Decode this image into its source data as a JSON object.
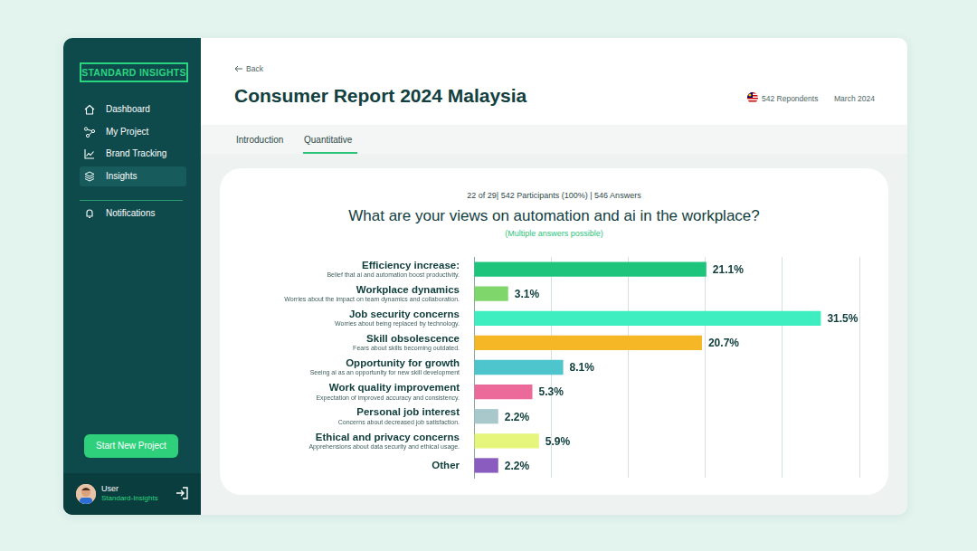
{
  "sidebar": {
    "logo": "STANDARD INSIGHTS",
    "nav": [
      "Dashboard",
      "My Project",
      "Brand Tracking",
      "Insights"
    ],
    "notifications": "Notifications",
    "button": "Start New Project",
    "user": {
      "name": "User",
      "company": "Standard-Insights"
    }
  },
  "header": {
    "back": "Back",
    "title": "Consumer Report 2024 Malaysia",
    "respondents": "542 Repondents",
    "date": "March 2024"
  },
  "tabs": [
    "Introduction",
    "Quantitative"
  ],
  "chart_data": {
    "type": "bar",
    "orientation": "horizontal",
    "annotations": [
      "22 of 29| 542 Participants (100%) | 546 Answers"
    ],
    "title": "What are your views on automation and ai in the workplace?",
    "subtitle": "(Multiple answers possible)",
    "categories": [
      "Efficiency increase:",
      "Workplace dynamics",
      "Job security concerns",
      "Skill obsolescence",
      "Opportunity for growth",
      "Work quality improvement",
      "Personal job interest",
      "Ethical and privacy concerns",
      "Other"
    ],
    "category_descriptions": [
      "Belief that ai and automation boost productivity.",
      "Worries about the impact on team dynamics and collaboration.",
      "Worries about being replaced by technology.",
      "Fears about skills becoming outdated.",
      "Seeing ai as an opportunity for new skill development",
      "Expectation of improved accuracy and consistency.",
      "Concerns about decreased job satisfaction.",
      "Apprehensions about data security and ethical usage.",
      null
    ],
    "values": [
      21.1,
      3.1,
      31.5,
      20.7,
      8.1,
      5.3,
      2.2,
      5.9,
      2.2
    ],
    "value_labels": [
      "21.1%",
      "3.1%",
      "31.5%",
      "20.7%",
      "8.1%",
      "5.3%",
      "2.2%",
      "5.9%",
      "2.2%"
    ],
    "colors": [
      "#1fc47c",
      "#7fd66b",
      "#3eedc0",
      "#f5b726",
      "#4ec4cc",
      "#ec6a9a",
      "#a9c8cb",
      "#e6f57c",
      "#8a5cc0"
    ],
    "xlim": [
      0,
      35
    ],
    "xticks": [
      0,
      7,
      14,
      21,
      28,
      35
    ],
    "grid": true,
    "data_labels": true,
    "tick_labels": "y"
  }
}
